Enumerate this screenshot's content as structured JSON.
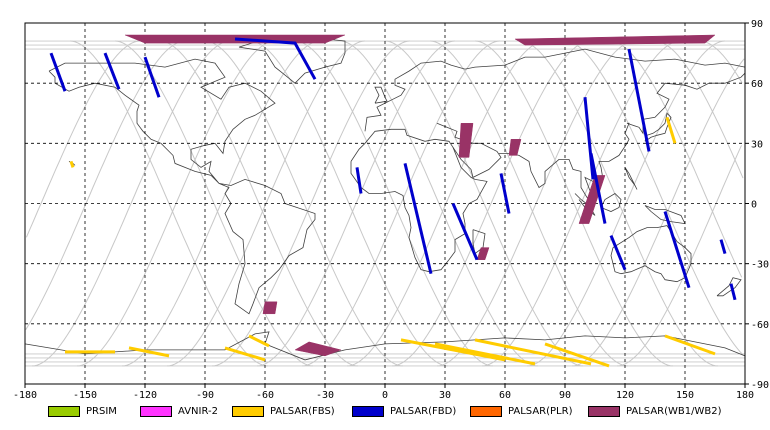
{
  "map": {
    "x_ticks": [
      "-180",
      "-150",
      "-120",
      "-90",
      "-60",
      "-30",
      "0",
      "30",
      "60",
      "90",
      "120",
      "150",
      "180"
    ],
    "y_ticks": [
      "90",
      "60",
      "30",
      "0",
      "-30",
      "-60",
      "-90"
    ],
    "lon_values": [
      -180,
      -150,
      -120,
      -90,
      -60,
      -30,
      0,
      30,
      60,
      90,
      120,
      150,
      180
    ],
    "lat_values": [
      90,
      60,
      30,
      0,
      -30,
      -60,
      -90
    ],
    "colors": {
      "grid": "#000000",
      "orbit": "#c8c8c8",
      "coast": "#404040",
      "prsim": "#99cc00",
      "avnir2": "#ff33ff",
      "fbs": "#ffcc00",
      "fbd": "#0000cc",
      "plr": "#ff6600",
      "wb": "#993366"
    }
  },
  "legend": {
    "items": [
      {
        "label": "PRSIM",
        "color": "#99cc00"
      },
      {
        "label": "AVNIR-2",
        "color": "#ff33ff"
      },
      {
        "label": "PALSAR(FBS)",
        "color": "#ffcc00"
      },
      {
        "label": "PALSAR(FBD)",
        "color": "#0000cc"
      },
      {
        "label": "PALSAR(PLR)",
        "color": "#ff6600"
      },
      {
        "label": "PALSAR(WB1/WB2)",
        "color": "#993366"
      }
    ]
  },
  "tracks": {
    "fbd": [
      [
        [
          -167,
          75
        ],
        [
          -160,
          56
        ]
      ],
      [
        [
          -140,
          75
        ],
        [
          -133,
          57
        ]
      ],
      [
        [
          -120,
          73
        ],
        [
          -113,
          53
        ]
      ],
      [
        [
          -75,
          82
        ],
        [
          -45,
          80
        ],
        [
          -35,
          62
        ]
      ],
      [
        [
          122,
          77
        ],
        [
          132,
          26
        ]
      ],
      [
        [
          100,
          53
        ],
        [
          104,
          12
        ]
      ],
      [
        [
          -14,
          18
        ],
        [
          -12,
          5
        ]
      ],
      [
        [
          10,
          20
        ],
        [
          23,
          -35
        ]
      ],
      [
        [
          34,
          0
        ],
        [
          46,
          -28
        ]
      ],
      [
        [
          58,
          15
        ],
        [
          62,
          -5
        ]
      ],
      [
        [
          103,
          25
        ],
        [
          110,
          -10
        ]
      ],
      [
        [
          113,
          -16
        ],
        [
          120,
          -33
        ]
      ],
      [
        [
          140,
          -4
        ],
        [
          152,
          -42
        ]
      ],
      [
        [
          168,
          -18
        ],
        [
          170,
          -25
        ]
      ],
      [
        [
          173,
          -40
        ],
        [
          175,
          -48
        ]
      ]
    ],
    "fbs": [
      [
        [
          -160,
          -74
        ],
        [
          -135,
          -74
        ]
      ],
      [
        [
          -128,
          -72
        ],
        [
          -108,
          -76
        ]
      ],
      [
        [
          -80,
          -72
        ],
        [
          -60,
          -78
        ]
      ],
      [
        [
          -68,
          -66
        ],
        [
          -58,
          -71
        ]
      ],
      [
        [
          8,
          -68
        ],
        [
          60,
          -78
        ]
      ],
      [
        [
          25,
          -70
        ],
        [
          75,
          -80
        ]
      ],
      [
        [
          45,
          -68
        ],
        [
          103,
          -80
        ]
      ],
      [
        [
          80,
          -70
        ],
        [
          112,
          -81
        ]
      ],
      [
        [
          140,
          -66
        ],
        [
          165,
          -75
        ]
      ],
      [
        [
          141,
          43
        ],
        [
          145,
          30
        ]
      ],
      [
        [
          -157,
          21
        ],
        [
          -156,
          18
        ]
      ]
    ],
    "wb_polys": [
      [
        [
          -130,
          84
        ],
        [
          -20,
          84
        ],
        [
          -30,
          80
        ],
        [
          -120,
          80
        ]
      ],
      [
        [
          65,
          82
        ],
        [
          165,
          84
        ],
        [
          160,
          80
        ],
        [
          70,
          79
        ]
      ],
      [
        [
          38,
          40
        ],
        [
          44,
          40
        ],
        [
          42,
          23
        ],
        [
          37,
          23
        ]
      ],
      [
        [
          63,
          32
        ],
        [
          68,
          32
        ],
        [
          66,
          24
        ],
        [
          62,
          24
        ]
      ],
      [
        [
          105,
          14
        ],
        [
          110,
          14
        ],
        [
          102,
          -10
        ],
        [
          97,
          -10
        ]
      ],
      [
        [
          48,
          -22
        ],
        [
          52,
          -22
        ],
        [
          50,
          -28
        ],
        [
          46,
          -28
        ]
      ],
      [
        [
          -60,
          -49
        ],
        [
          -54,
          -49
        ],
        [
          -55,
          -55
        ],
        [
          -61,
          -55
        ]
      ],
      [
        [
          -38,
          -69
        ],
        [
          -22,
          -73
        ],
        [
          -30,
          -76
        ],
        [
          -45,
          -73
        ]
      ]
    ]
  }
}
